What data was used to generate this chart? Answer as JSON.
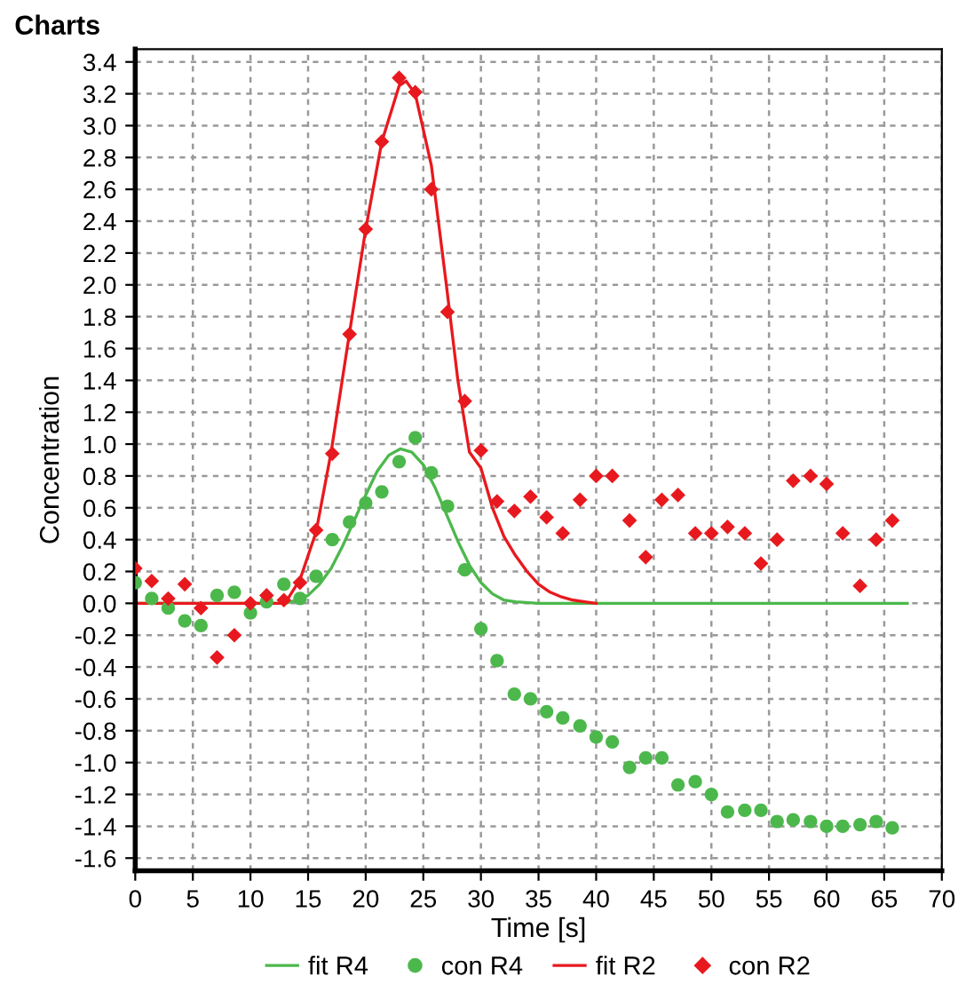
{
  "chart_data": {
    "type": "scatter",
    "title": "Charts",
    "xlabel": "Time [s]",
    "ylabel": "Concentration",
    "xlim": [
      0,
      70
    ],
    "xticks": [
      0,
      5,
      10,
      15,
      20,
      25,
      30,
      35,
      40,
      45,
      50,
      55,
      60,
      65,
      70
    ],
    "ylim": [
      -1.68,
      3.48
    ],
    "yticks": [
      {
        "value": -1.6,
        "label": "-1.6"
      },
      {
        "value": -1.4,
        "label": "-1.4"
      },
      {
        "value": -1.2,
        "label": "-1.2"
      },
      {
        "value": -1.0,
        "label": "-1.0"
      },
      {
        "value": -0.8,
        "label": "-0.8"
      },
      {
        "value": -0.6,
        "label": "-0.6"
      },
      {
        "value": -0.4,
        "label": "-0.4"
      },
      {
        "value": -0.2,
        "label": "-0.2"
      },
      {
        "value": 0,
        "label": "0.0"
      },
      {
        "value": 0.2,
        "label": "0.2"
      },
      {
        "value": 0.4,
        "label": "0.4"
      },
      {
        "value": 0.6,
        "label": "0.6"
      },
      {
        "value": 0.8,
        "label": "0.8"
      },
      {
        "value": 1.0,
        "label": "1.0"
      },
      {
        "value": 1.2,
        "label": "1.2"
      },
      {
        "value": 1.4,
        "label": "1.4"
      },
      {
        "value": 1.6,
        "label": "1.6"
      },
      {
        "value": 1.8,
        "label": "1.8"
      },
      {
        "value": 2.0,
        "label": "2.0"
      },
      {
        "value": 2.2,
        "label": "2.2"
      },
      {
        "value": 2.4,
        "label": "2.4"
      },
      {
        "value": 2.6,
        "label": "2.6"
      },
      {
        "value": 2.8,
        "label": "2.8"
      },
      {
        "value": 3.0,
        "label": "3.0"
      },
      {
        "value": 3.2,
        "label": "3.2"
      },
      {
        "value": 3.4,
        "label": "3.4"
      }
    ],
    "grid": true,
    "legend": "bottom",
    "series": [
      {
        "name": "fit R4",
        "type": "line",
        "color": "#4cb84c",
        "marker": "none",
        "line_style": "solid",
        "x": [
          0,
          13,
          14,
          15,
          16,
          17,
          18,
          19,
          20,
          21,
          22,
          23,
          24,
          25,
          26,
          27,
          28,
          29,
          30,
          31,
          32,
          33,
          35,
          67
        ],
        "values": [
          0,
          0,
          0.02,
          0.05,
          0.12,
          0.22,
          0.36,
          0.52,
          0.68,
          0.83,
          0.93,
          0.97,
          0.95,
          0.87,
          0.73,
          0.56,
          0.39,
          0.24,
          0.13,
          0.06,
          0.02,
          0.01,
          0,
          0
        ]
      },
      {
        "name": "con R4",
        "color": "#4cb84c",
        "marker": "circle",
        "x": [
          0,
          1.43,
          2.86,
          4.3,
          5.7,
          7.1,
          8.6,
          10.0,
          11.4,
          12.9,
          14.3,
          15.7,
          17.1,
          18.6,
          20.0,
          21.4,
          22.9,
          24.3,
          25.7,
          27.1,
          28.6,
          30.0,
          31.4,
          32.9,
          34.3,
          35.7,
          37.1,
          38.6,
          40.0,
          41.4,
          42.9,
          44.3,
          45.7,
          47.1,
          48.6,
          50.0,
          51.4,
          52.9,
          54.3,
          55.7,
          57.1,
          58.6,
          60.0,
          61.4,
          62.9,
          64.3,
          65.7
        ],
        "values": [
          0.13,
          0.03,
          -0.03,
          -0.11,
          -0.14,
          0.05,
          0.07,
          -0.06,
          0.01,
          0.12,
          0.03,
          0.17,
          0.4,
          0.51,
          0.63,
          0.7,
          0.89,
          1.04,
          0.82,
          0.61,
          0.21,
          -0.16,
          -0.36,
          -0.57,
          -0.6,
          -0.68,
          -0.72,
          -0.77,
          -0.84,
          -0.87,
          -1.03,
          -0.97,
          -0.97,
          -1.14,
          -1.12,
          -1.2,
          -1.31,
          -1.3,
          -1.3,
          -1.37,
          -1.36,
          -1.37,
          -1.4,
          -1.4,
          -1.39,
          -1.37,
          -1.41
        ]
      },
      {
        "name": "fit R2",
        "type": "line",
        "color": "#e8191e",
        "marker": "none",
        "line_style": "solid",
        "x": [
          0,
          13,
          14.3,
          15.7,
          17,
          18.6,
          20,
          21.4,
          22.9,
          23.5,
          24.3,
          25.7,
          27,
          28,
          29,
          30,
          31,
          32,
          33,
          34,
          35,
          36,
          37,
          38,
          39,
          40
        ],
        "values": [
          0,
          0,
          0.15,
          0.45,
          0.95,
          1.7,
          2.35,
          2.9,
          3.25,
          3.28,
          3.2,
          2.75,
          2.0,
          1.4,
          0.95,
          0.85,
          0.6,
          0.42,
          0.3,
          0.2,
          0.12,
          0.07,
          0.04,
          0.02,
          0.01,
          0
        ]
      },
      {
        "name": "con R2",
        "color": "#e8191e",
        "marker": "diamond",
        "x": [
          0,
          1.43,
          2.86,
          4.3,
          5.7,
          7.1,
          8.6,
          10.0,
          11.4,
          12.9,
          14.3,
          15.7,
          17.1,
          18.6,
          20.0,
          21.4,
          22.9,
          24.3,
          25.7,
          27.1,
          28.6,
          30.0,
          31.4,
          32.9,
          34.3,
          35.7,
          37.1,
          38.6,
          40.0,
          41.4,
          42.9,
          44.3,
          45.7,
          47.1,
          48.6,
          50.0,
          51.4,
          52.9,
          54.3,
          55.7,
          57.1,
          58.6,
          60.0,
          61.4,
          62.9,
          64.3,
          65.7
        ],
        "values": [
          0.22,
          0.14,
          0.03,
          0.12,
          -0.03,
          -0.34,
          -0.2,
          0.0,
          0.05,
          0.02,
          0.13,
          0.46,
          0.94,
          1.69,
          2.35,
          2.9,
          3.3,
          3.21,
          2.6,
          1.83,
          1.27,
          0.96,
          0.64,
          0.58,
          0.67,
          0.54,
          0.44,
          0.65,
          0.8,
          0.8,
          0.52,
          0.29,
          0.65,
          0.68,
          0.44,
          0.44,
          0.48,
          0.44,
          0.25,
          0.4,
          0.77,
          0.8,
          0.75,
          0.44,
          0.11,
          0.4,
          0.52
        ]
      }
    ]
  }
}
